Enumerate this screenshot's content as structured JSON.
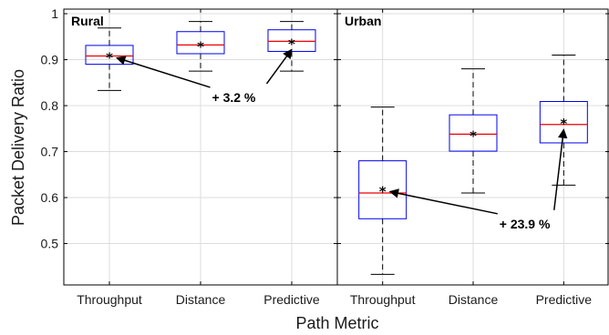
{
  "chart_data": {
    "type": "boxplot",
    "xlabel": "Path Metric",
    "ylabel": "Packet Delivery Ratio",
    "ylim": [
      0.41,
      1.01
    ],
    "yticks": [
      0.5,
      0.6,
      0.7,
      0.8,
      0.9,
      1
    ],
    "ytick_labels": [
      "0.5",
      "0.6",
      "0.7",
      "0.8",
      "0.9",
      "1"
    ],
    "grid": true,
    "colors": {
      "box": "#0000ee",
      "median": "#ee0000",
      "whisker": "#000000",
      "mean": "#000000"
    },
    "panels": [
      {
        "label": "Rural",
        "categories": [
          "Throughput",
          "Distance",
          "Predictive"
        ],
        "boxes": [
          {
            "whisker_low": 0.833,
            "q1": 0.89,
            "median": 0.908,
            "q3": 0.931,
            "whisker_high": 0.969,
            "mean": 0.908
          },
          {
            "whisker_low": 0.875,
            "q1": 0.913,
            "median": 0.932,
            "q3": 0.961,
            "whisker_high": 0.983,
            "mean": 0.932
          },
          {
            "whisker_low": 0.875,
            "q1": 0.918,
            "median": 0.94,
            "q3": 0.965,
            "whisker_high": 0.983,
            "mean": 0.938
          }
        ],
        "annotation": {
          "text": "+ 3.2 %",
          "from_box": 0,
          "to_box": 2
        }
      },
      {
        "label": "Urban",
        "categories": [
          "Throughput",
          "Distance",
          "Predictive"
        ],
        "boxes": [
          {
            "whisker_low": 0.433,
            "q1": 0.554,
            "median": 0.61,
            "q3": 0.68,
            "whisker_high": 0.797,
            "mean": 0.617
          },
          {
            "whisker_low": 0.61,
            "q1": 0.701,
            "median": 0.738,
            "q3": 0.78,
            "whisker_high": 0.88,
            "mean": 0.738
          },
          {
            "whisker_low": 0.627,
            "q1": 0.719,
            "median": 0.759,
            "q3": 0.809,
            "whisker_high": 0.91,
            "mean": 0.764
          }
        ],
        "annotation": {
          "text": "+ 23.9 %",
          "from_box": 0,
          "to_box": 2
        }
      }
    ]
  }
}
